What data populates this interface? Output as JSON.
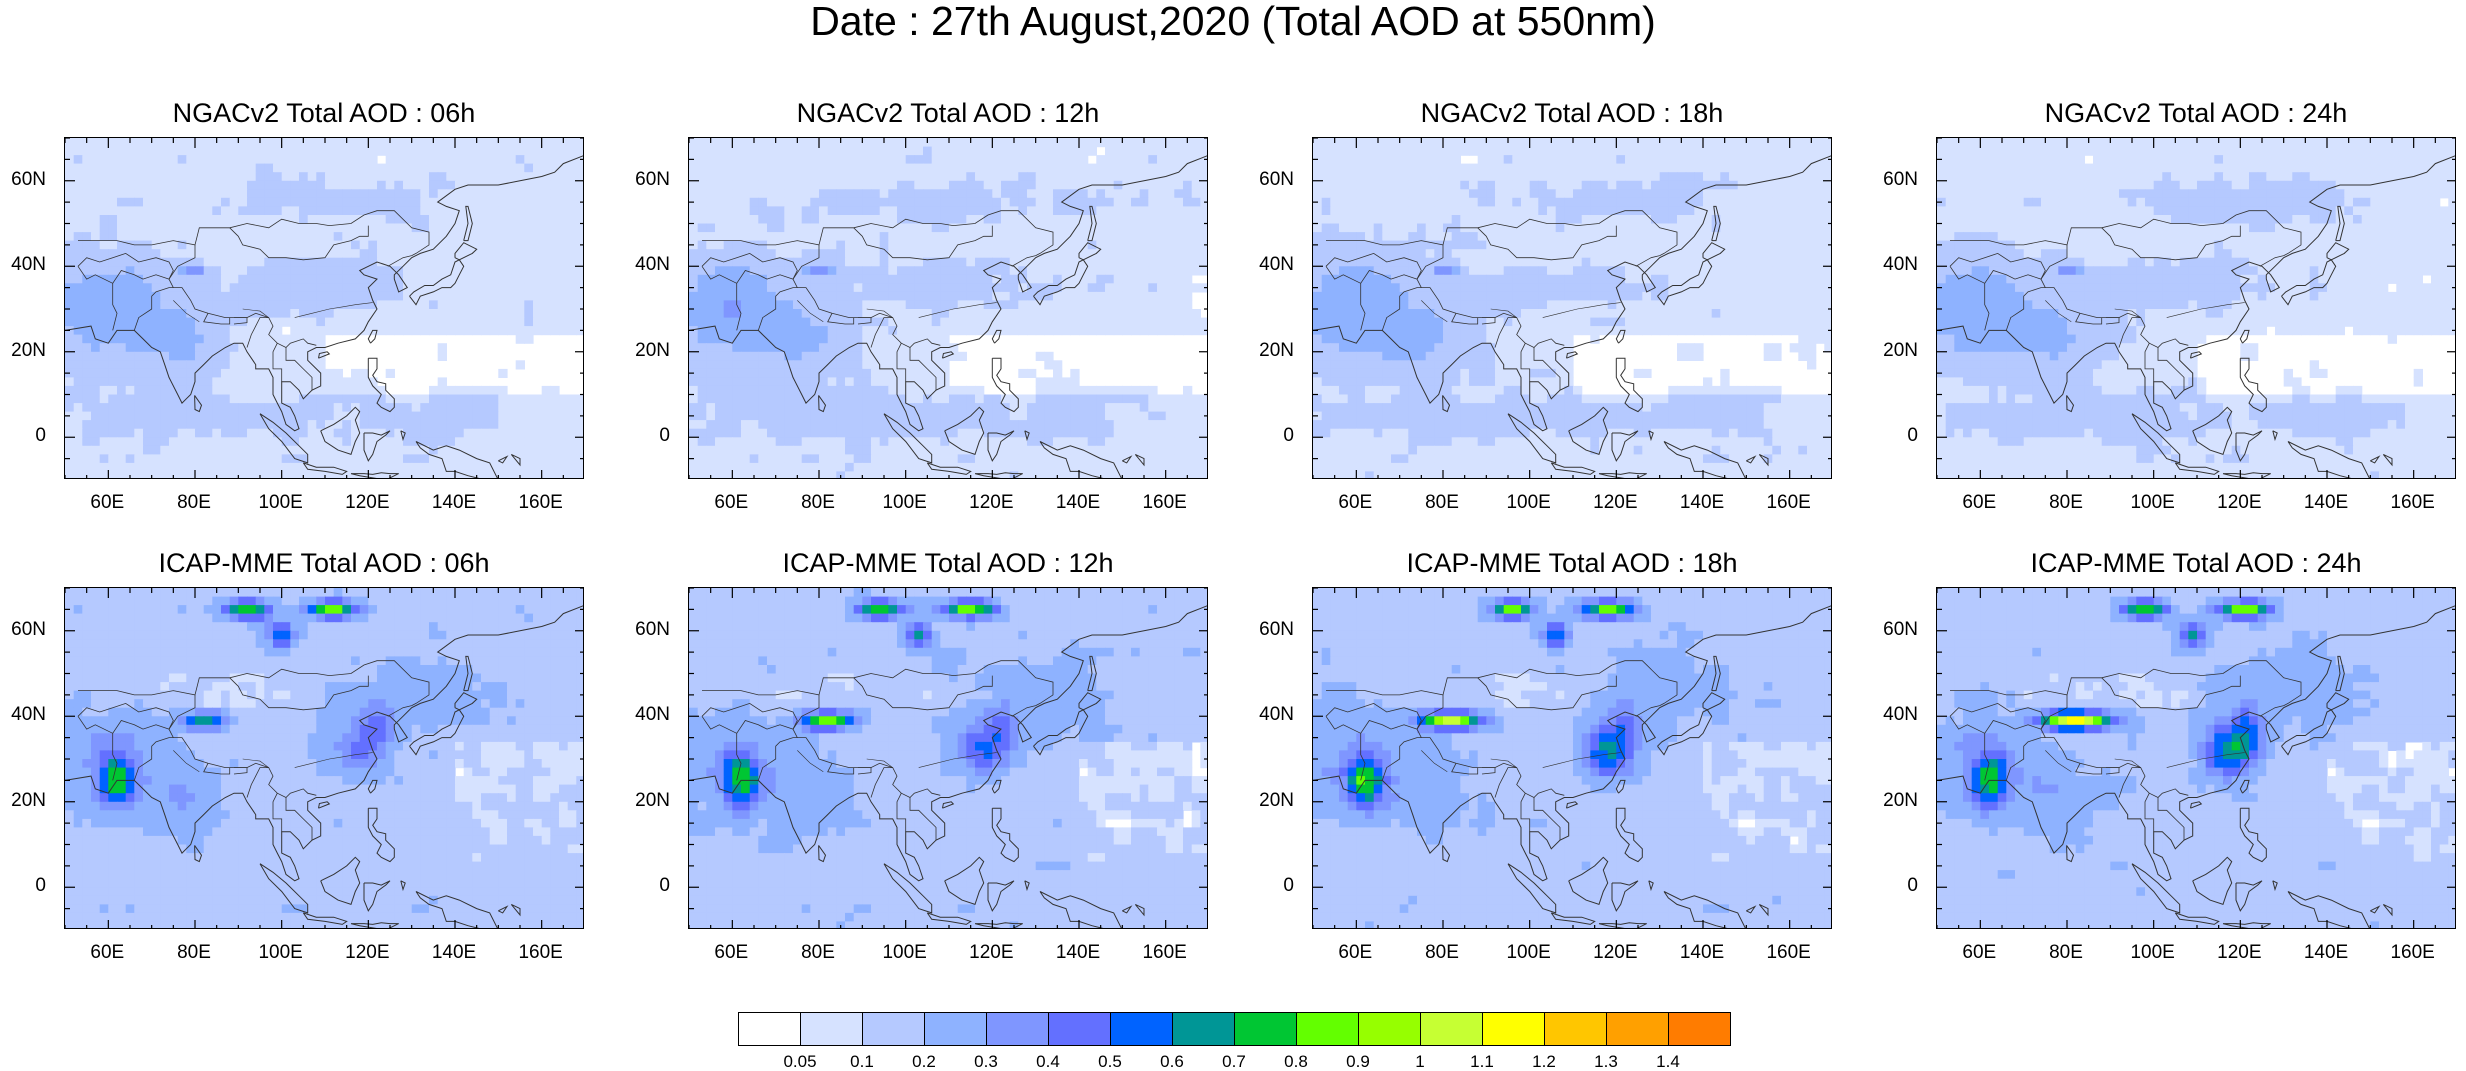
{
  "title": "Date : 27th August,2020 (Total AOD at 550nm)",
  "x_ticks": [
    "60E",
    "80E",
    "100E",
    "120E",
    "140E",
    "160E"
  ],
  "y_ticks": [
    "60N",
    "40N",
    "20N",
    "0"
  ],
  "panels": [
    {
      "title": "NGACv2 Total AOD : 06h",
      "model": "NGACv2",
      "lead": "06h"
    },
    {
      "title": "NGACv2 Total AOD : 12h",
      "model": "NGACv2",
      "lead": "12h"
    },
    {
      "title": "NGACv2 Total AOD : 18h",
      "model": "NGACv2",
      "lead": "18h"
    },
    {
      "title": "NGACv2 Total AOD : 24h",
      "model": "NGACv2",
      "lead": "24h"
    },
    {
      "title": "ICAP-MME Total AOD : 06h",
      "model": "ICAP-MME",
      "lead": "06h"
    },
    {
      "title": "ICAP-MME Total AOD : 12h",
      "model": "ICAP-MME",
      "lead": "12h"
    },
    {
      "title": "ICAP-MME Total AOD : 18h",
      "model": "ICAP-MME",
      "lead": "18h"
    },
    {
      "title": "ICAP-MME Total AOD : 24h",
      "model": "ICAP-MME",
      "lead": "24h"
    }
  ],
  "colorbar": {
    "labels": [
      "0.05",
      "0.1",
      "0.2",
      "0.3",
      "0.4",
      "0.5",
      "0.6",
      "0.7",
      "0.8",
      "0.9",
      "1",
      "1.1",
      "1.2",
      "1.3",
      "1.4"
    ],
    "colors": [
      "#ffffff",
      "#d6e2ff",
      "#b5c9ff",
      "#8eb2ff",
      "#7f96ff",
      "#6370ff",
      "#0063ff",
      "#009696",
      "#00c633",
      "#63ff00",
      "#96ff00",
      "#c6ff33",
      "#ffff00",
      "#ffc600",
      "#ffa000",
      "#ff7c00",
      "#ff1900"
    ]
  }
}
